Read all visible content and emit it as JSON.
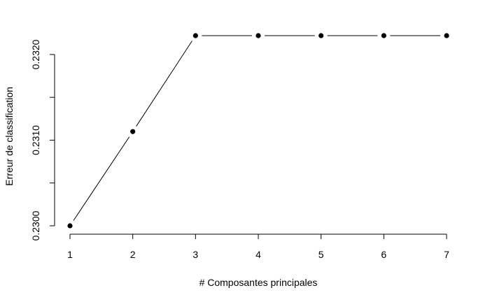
{
  "chart_data": {
    "type": "line",
    "title": "",
    "xlabel": "# Composantes principales",
    "ylabel": "Erreur de classification",
    "x": [
      1,
      2,
      3,
      4,
      5,
      6,
      7
    ],
    "series": [
      {
        "values": [
          0.23,
          0.2311,
          0.23222,
          0.23222,
          0.23222,
          0.23222,
          0.23222
        ]
      }
    ],
    "xticks": [
      1,
      2,
      3,
      4,
      5,
      6,
      7
    ],
    "xtick_labels": [
      "1",
      "2",
      "3",
      "4",
      "5",
      "6",
      "7"
    ],
    "yticks": [
      0.23,
      0.2305,
      0.231,
      0.2315,
      0.232
    ],
    "ytick_labels": [
      "0.2300",
      "",
      "0.2310",
      "",
      "0.2320"
    ],
    "xlim": [
      1,
      7
    ],
    "ylim": [
      0.23,
      0.23222
    ],
    "grid": false,
    "legend": "none",
    "colors": {
      "line": "#000000",
      "points": "#000000",
      "background": "#ffffff"
    }
  }
}
